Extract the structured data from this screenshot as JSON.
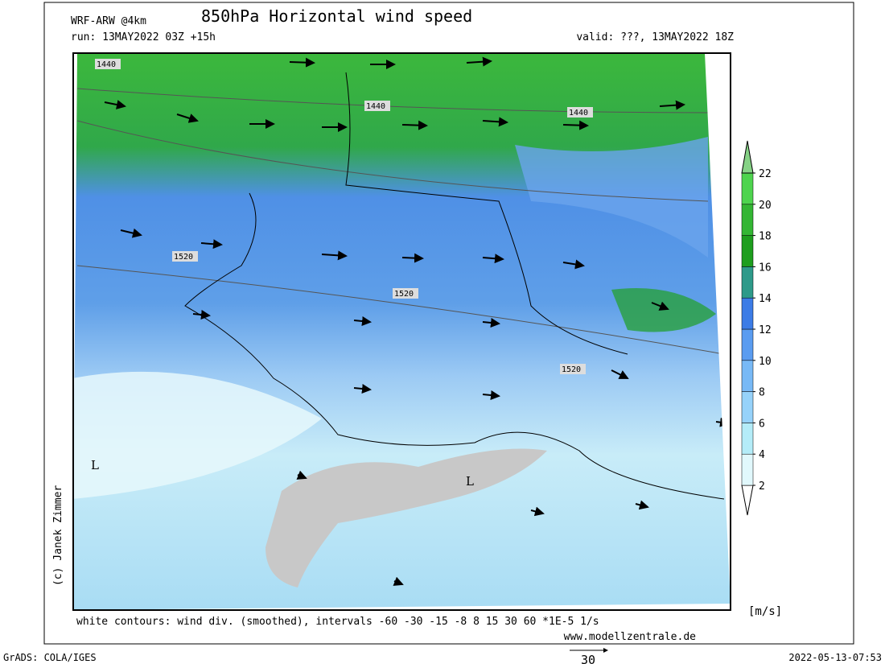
{
  "header": {
    "model": "WRF-ARW @4km",
    "title": "850hPa Horizontal wind speed",
    "run": "run: 13MAY2022 03Z +15h",
    "valid": "valid: ???, 13MAY2022 18Z"
  },
  "map": {
    "contour_labels": [
      "1440",
      "1440",
      "1440",
      "1520",
      "1520",
      "1520"
    ],
    "lows": [
      "L",
      "L"
    ]
  },
  "colorbar": {
    "levels": [
      2,
      4,
      6,
      8,
      10,
      12,
      14,
      16,
      18,
      20,
      22
    ],
    "colors": [
      "#ffffff",
      "#e1f8fc",
      "#b4ecf8",
      "#96d2fa",
      "#78b9f6",
      "#5a9cf0",
      "#3c7ce6",
      "#2e9a8a",
      "#1e9e1e",
      "#34b634",
      "#4ed44e",
      "#86d286"
    ],
    "unit": "[m/s]"
  },
  "footer": {
    "note": "white contours: wind div. (smoothed), intervals -60 -30 -15 -8 8 15 30 60 *1E-5 1/s",
    "site": "www.modellzentrale.de",
    "copyright": "(c) Janek Zimmer",
    "software": "GrADS: COLA/IGES",
    "timestamp": "2022-05-13-07:53",
    "reference_arrow": "30"
  }
}
